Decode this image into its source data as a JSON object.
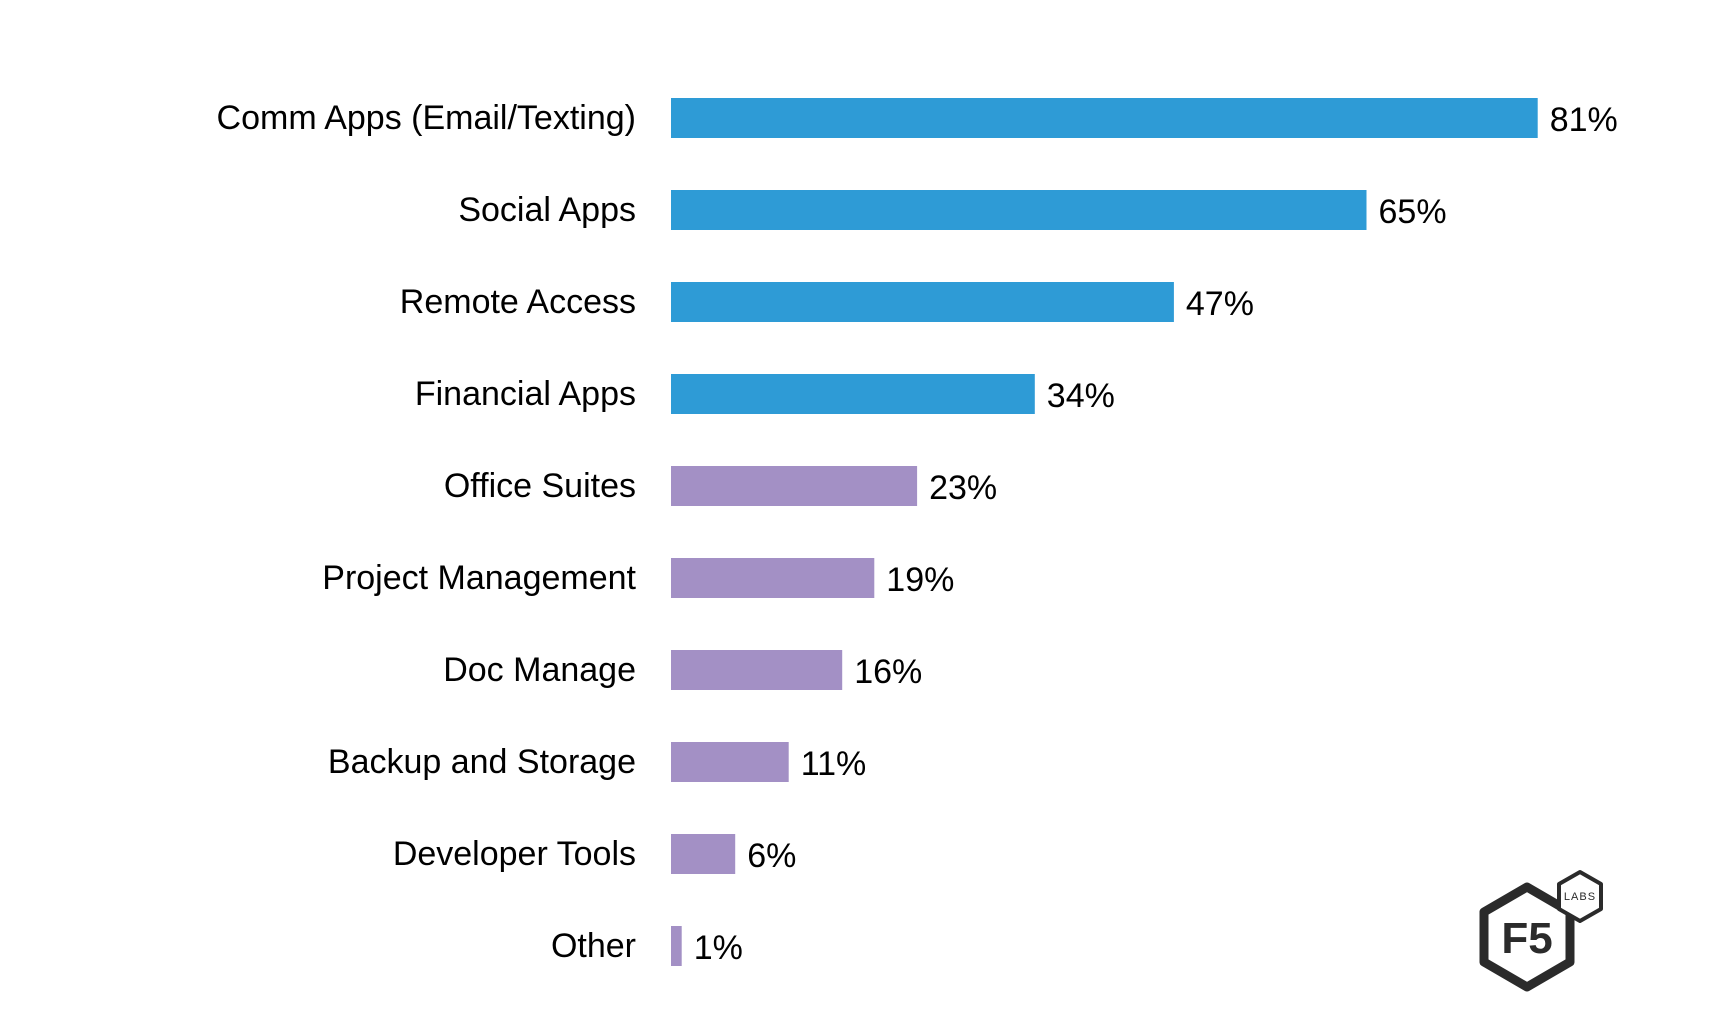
{
  "chart_data": {
    "type": "bar",
    "orientation": "horizontal",
    "categories": [
      "Comm Apps (Email/Texting)",
      "Social Apps",
      "Remote Access",
      "Financial Apps",
      "Office Suites",
      "Project Management",
      "Doc Manage",
      "Backup and Storage",
      "Developer Tools",
      "Other"
    ],
    "values": [
      81,
      65,
      47,
      34,
      23,
      19,
      16,
      11,
      6,
      1
    ],
    "value_labels": [
      "81%",
      "65%",
      "47%",
      "34%",
      "23%",
      "19%",
      "16%",
      "11%",
      "6%",
      "1%"
    ],
    "bar_colors": [
      "#2e9bd6",
      "#2e9bd6",
      "#2e9bd6",
      "#2e9bd6",
      "#a390c5",
      "#a390c5",
      "#a390c5",
      "#a390c5",
      "#a390c5",
      "#a390c5"
    ],
    "xlim": [
      0,
      100
    ],
    "grid": false,
    "axes_visible": false
  },
  "logo": {
    "main_text": "F5",
    "small_text": "LABS"
  }
}
